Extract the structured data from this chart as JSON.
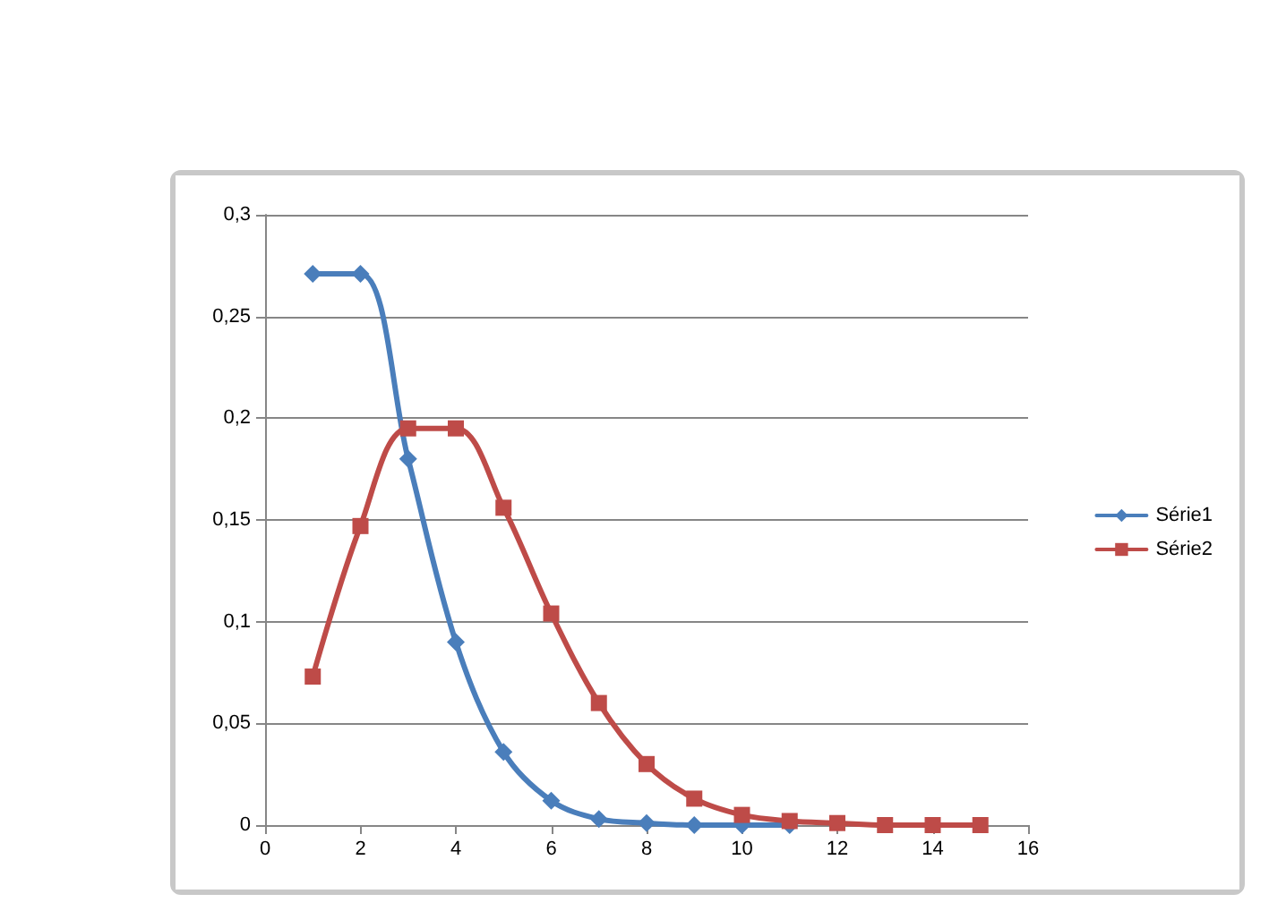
{
  "chart_data": {
    "type": "line",
    "x": [
      1,
      2,
      3,
      4,
      5,
      6,
      7,
      8,
      9,
      10,
      11,
      12,
      13,
      14,
      15
    ],
    "series": [
      {
        "name": "Série1",
        "color": "#4a7ebb",
        "marker": "diamond",
        "x": [
          1,
          2,
          3,
          4,
          5,
          6,
          7,
          8,
          9,
          10,
          11
        ],
        "values": [
          0.271,
          0.271,
          0.18,
          0.09,
          0.036,
          0.012,
          0.003,
          0.001,
          0,
          0,
          0
        ]
      },
      {
        "name": "Série2",
        "color": "#be4b48",
        "marker": "square",
        "values": [
          0.073,
          0.147,
          0.195,
          0.195,
          0.156,
          0.104,
          0.06,
          0.03,
          0.013,
          0.005,
          0.002,
          0.001,
          0,
          0,
          0
        ]
      }
    ],
    "xlim": [
      0,
      16
    ],
    "xticks": [
      0,
      2,
      4,
      6,
      8,
      10,
      12,
      14,
      16
    ],
    "ylim": [
      0,
      0.3
    ],
    "yticks": [
      0,
      {
        "value": 0.05,
        "label": "0,05"
      },
      {
        "value": 0.1,
        "label": "0,1"
      },
      {
        "value": 0.15,
        "label": "0,15"
      },
      {
        "value": 0.2,
        "label": "0,2"
      },
      {
        "value": 0.25,
        "label": "0,25"
      },
      {
        "value": 0.3,
        "label": "0,3"
      }
    ],
    "grid": "y",
    "legend": "right",
    "line_style": "solid"
  }
}
